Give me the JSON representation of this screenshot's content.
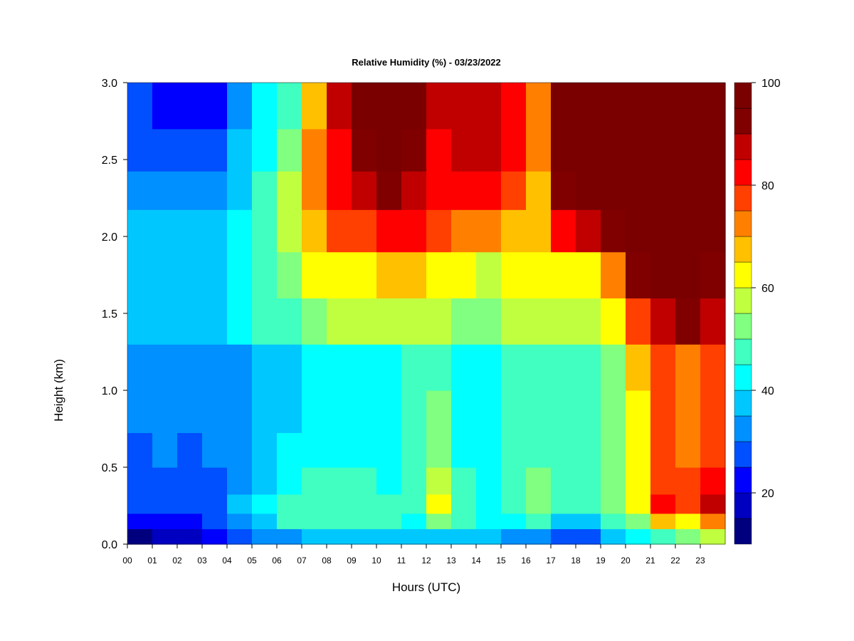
{
  "chart_data": {
    "type": "heatmap",
    "title": "Relative Humidity (%) - 03/23/2022",
    "xlabel": "Hours (UTC)",
    "ylabel": "Height (km)",
    "xlim": [
      0,
      24
    ],
    "ylim": [
      0,
      3
    ],
    "x_ticks": [
      "00",
      "01",
      "02",
      "03",
      "04",
      "05",
      "06",
      "07",
      "08",
      "09",
      "10",
      "11",
      "12",
      "13",
      "14",
      "15",
      "16",
      "17",
      "18",
      "19",
      "20",
      "21",
      "22",
      "23"
    ],
    "y_ticks": [
      "0.0",
      "0.5",
      "1.0",
      "1.5",
      "2.0",
      "2.5",
      "3.0"
    ],
    "colorbar": {
      "ticks": [
        "20",
        "40",
        "60",
        "80",
        "100"
      ],
      "min": 10,
      "max": 100,
      "level_step": 5,
      "colors": [
        "#00007f",
        "#0000c0",
        "#0000ff",
        "#0050ff",
        "#0090ff",
        "#00c8ff",
        "#00ffff",
        "#40ffc0",
        "#80ff80",
        "#c0ff40",
        "#ffff00",
        "#ffc000",
        "#ff8000",
        "#ff4000",
        "#ff0000",
        "#c00000",
        "#800000",
        "#7a0000"
      ]
    },
    "heights_km": [
      0.05,
      0.15,
      0.25,
      0.4,
      0.6,
      0.85,
      1.15,
      1.45,
      1.75,
      2.05,
      2.3,
      2.55,
      2.85
    ],
    "rows": [
      {
        "hour": "00",
        "rh": [
          14,
          22,
          26,
          27,
          28,
          30,
          33,
          37,
          37,
          35,
          32,
          28,
          26
        ]
      },
      {
        "hour": "01",
        "rh": [
          16,
          24,
          28,
          29,
          30,
          32,
          32,
          38,
          37,
          35,
          32,
          28,
          24
        ]
      },
      {
        "hour": "02",
        "rh": [
          17,
          24,
          27,
          27,
          28,
          30,
          31,
          38,
          37,
          35,
          30,
          25,
          23
        ]
      },
      {
        "hour": "03",
        "rh": [
          20,
          27,
          29,
          29,
          30,
          31,
          32,
          39,
          37,
          36,
          32,
          27,
          24
        ]
      },
      {
        "hour": "04",
        "rh": [
          28,
          32,
          35,
          34,
          32,
          32,
          33,
          40,
          40,
          40,
          38,
          35,
          33
        ]
      },
      {
        "hour": "05",
        "rh": [
          30,
          38,
          40,
          38,
          36,
          35,
          36,
          45,
          47,
          48,
          45,
          42,
          40
        ]
      },
      {
        "hour": "06",
        "rh": [
          33,
          45,
          45,
          42,
          40,
          38,
          38,
          48,
          52,
          55,
          55,
          50,
          48
        ]
      },
      {
        "hour": "07",
        "rh": [
          35,
          47,
          47,
          45,
          43,
          41,
          41,
          52,
          60,
          68,
          72,
          70,
          66
        ]
      },
      {
        "hour": "08",
        "rh": [
          36,
          47,
          48,
          46,
          44,
          42,
          42,
          55,
          62,
          75,
          82,
          84,
          86
        ]
      },
      {
        "hour": "09",
        "rh": [
          36,
          46,
          47,
          45,
          43,
          41,
          40,
          55,
          63,
          78,
          88,
          94,
          96
        ]
      },
      {
        "hour": "10",
        "rh": [
          35,
          45,
          46,
          44,
          43,
          42,
          41,
          56,
          65,
          80,
          90,
          96,
          98
        ]
      },
      {
        "hour": "11",
        "rh": [
          35,
          44,
          46,
          45,
          45,
          45,
          45,
          56,
          65,
          80,
          88,
          92,
          95
        ]
      },
      {
        "hour": "12",
        "rh": [
          38,
          52,
          60,
          55,
          52,
          50,
          49,
          56,
          63,
          75,
          80,
          84,
          86
        ]
      },
      {
        "hour": "13",
        "rh": [
          37,
          45,
          47,
          45,
          44,
          42,
          41,
          53,
          60,
          73,
          82,
          86,
          88
        ]
      },
      {
        "hour": "14",
        "rh": [
          35,
          42,
          44,
          43,
          42,
          41,
          40,
          51,
          58,
          70,
          80,
          85,
          88
        ]
      },
      {
        "hour": "15",
        "rh": [
          34,
          44,
          48,
          47,
          46,
          45,
          45,
          55,
          60,
          68,
          75,
          80,
          82
        ]
      },
      {
        "hour": "16",
        "rh": [
          30,
          45,
          52,
          50,
          48,
          46,
          45,
          55,
          60,
          65,
          68,
          72,
          74
        ]
      },
      {
        "hour": "17",
        "rh": [
          25,
          38,
          45,
          45,
          45,
          45,
          45,
          55,
          62,
          80,
          90,
          96,
          98
        ]
      },
      {
        "hour": "18",
        "rh": [
          28,
          38,
          45,
          46,
          47,
          48,
          48,
          58,
          64,
          85,
          98,
          100,
          100
        ]
      },
      {
        "hour": "19",
        "rh": [
          35,
          45,
          52,
          52,
          52,
          52,
          52,
          62,
          70,
          94,
          100,
          100,
          100
        ]
      },
      {
        "hour": "20",
        "rh": [
          40,
          52,
          60,
          62,
          62,
          62,
          65,
          76,
          90,
          100,
          100,
          100,
          100
        ]
      },
      {
        "hour": "21",
        "rh": [
          45,
          65,
          80,
          78,
          76,
          75,
          75,
          88,
          98,
          100,
          100,
          100,
          100
        ]
      },
      {
        "hour": "22",
        "rh": [
          50,
          62,
          78,
          75,
          72,
          70,
          72,
          90,
          96,
          100,
          100,
          100,
          100
        ]
      },
      {
        "hour": "23",
        "rh": [
          55,
          72,
          86,
          82,
          78,
          75,
          75,
          88,
          92,
          95,
          97,
          98,
          98
        ]
      }
    ]
  }
}
